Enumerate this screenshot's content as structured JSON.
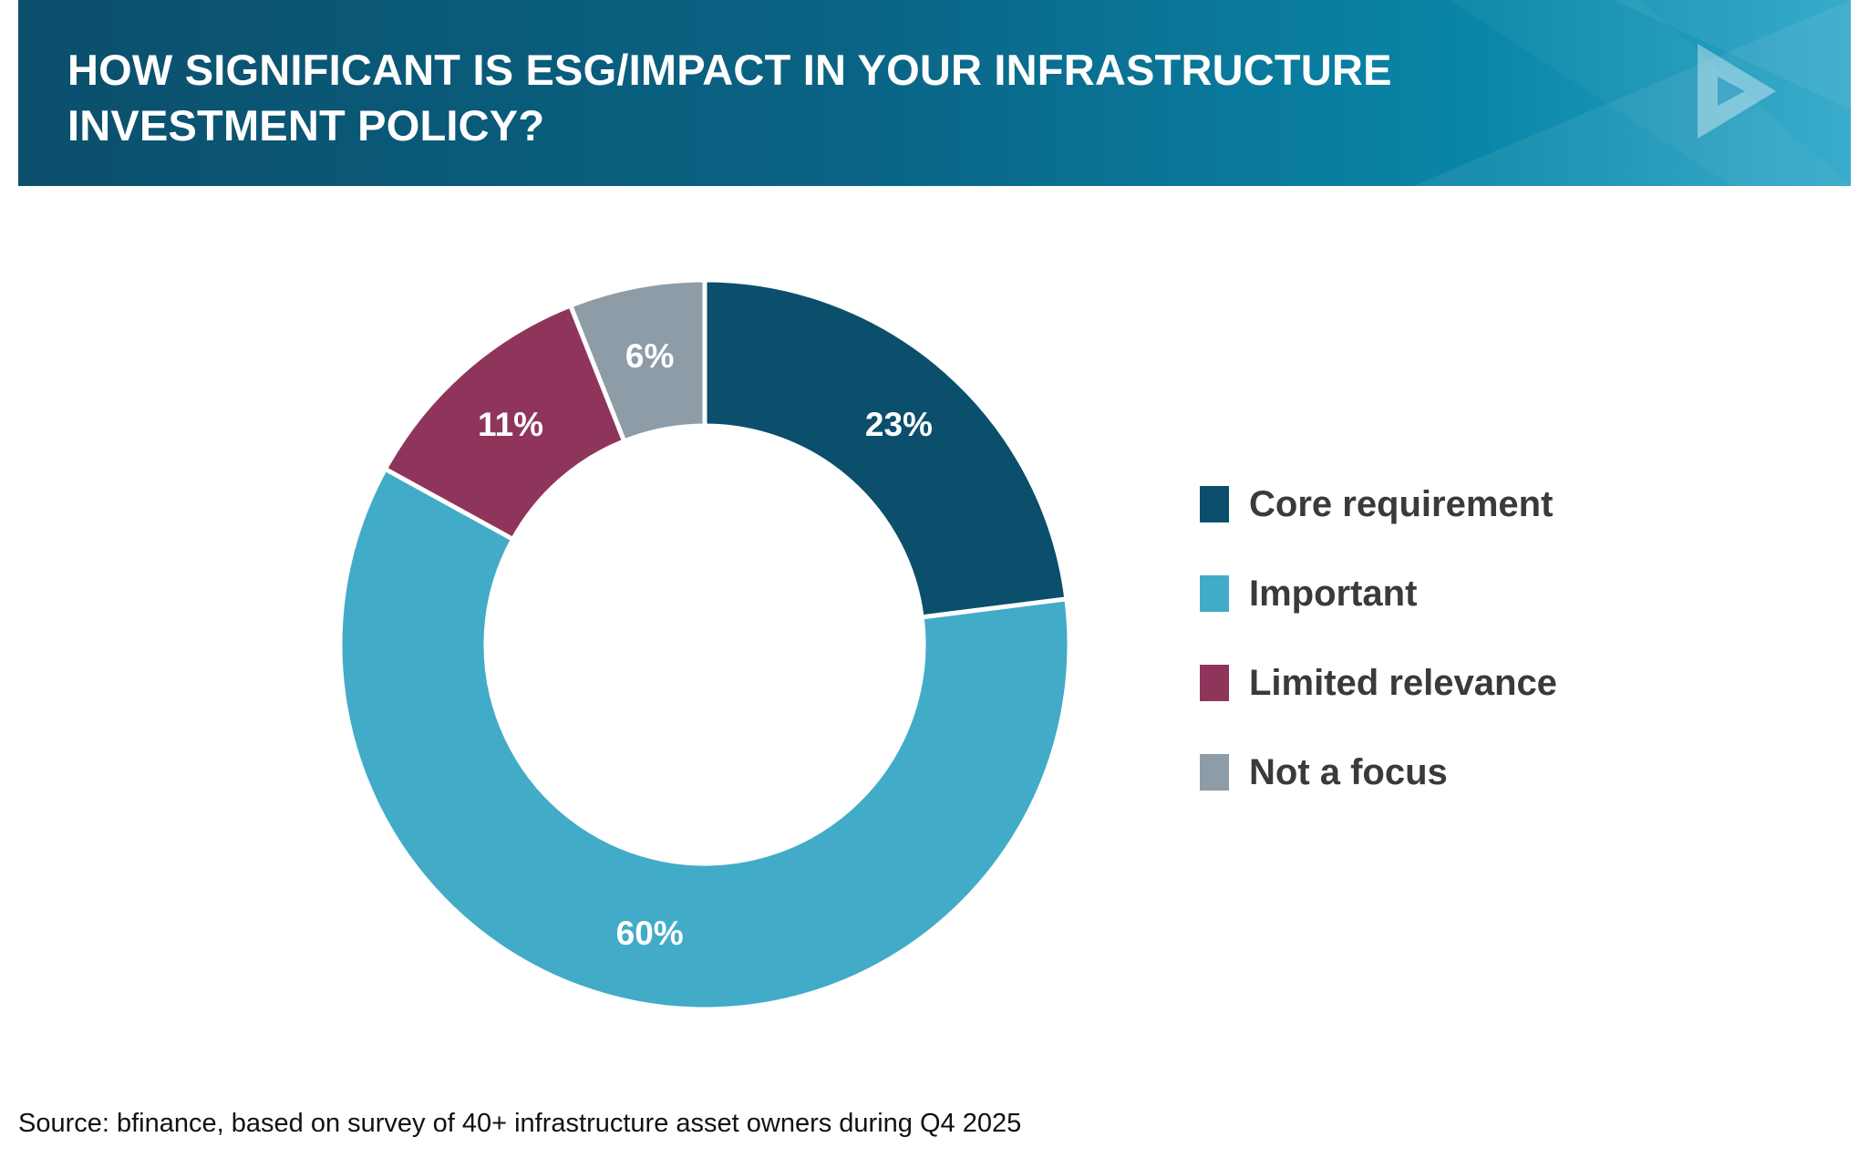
{
  "header": {
    "title_line1": "HOW SIGNIFICANT IS ESG/IMPACT IN YOUR INFRASTRUCTURE",
    "title_line2": "INVESTMENT POLICY?",
    "logo_icon": "play-triangle-icon"
  },
  "chart_data": {
    "type": "pie",
    "style": "donut",
    "title": "HOW SIGNIFICANT IS ESG/IMPACT IN YOUR INFRASTRUCTURE INVESTMENT POLICY?",
    "categories": [
      "Core requirement",
      "Important",
      "Limited relevance",
      "Not a focus"
    ],
    "values": [
      23,
      60,
      11,
      6
    ],
    "labels": [
      "23%",
      "60%",
      "11%",
      "6%"
    ],
    "colors": [
      "#0b4f6c",
      "#42abc8",
      "#8f355c",
      "#8e9ca8"
    ],
    "legend_position": "right"
  },
  "footer": {
    "source": "Source: bfinance, based on survey of 40+ infrastructure asset owners during Q4 2025"
  }
}
